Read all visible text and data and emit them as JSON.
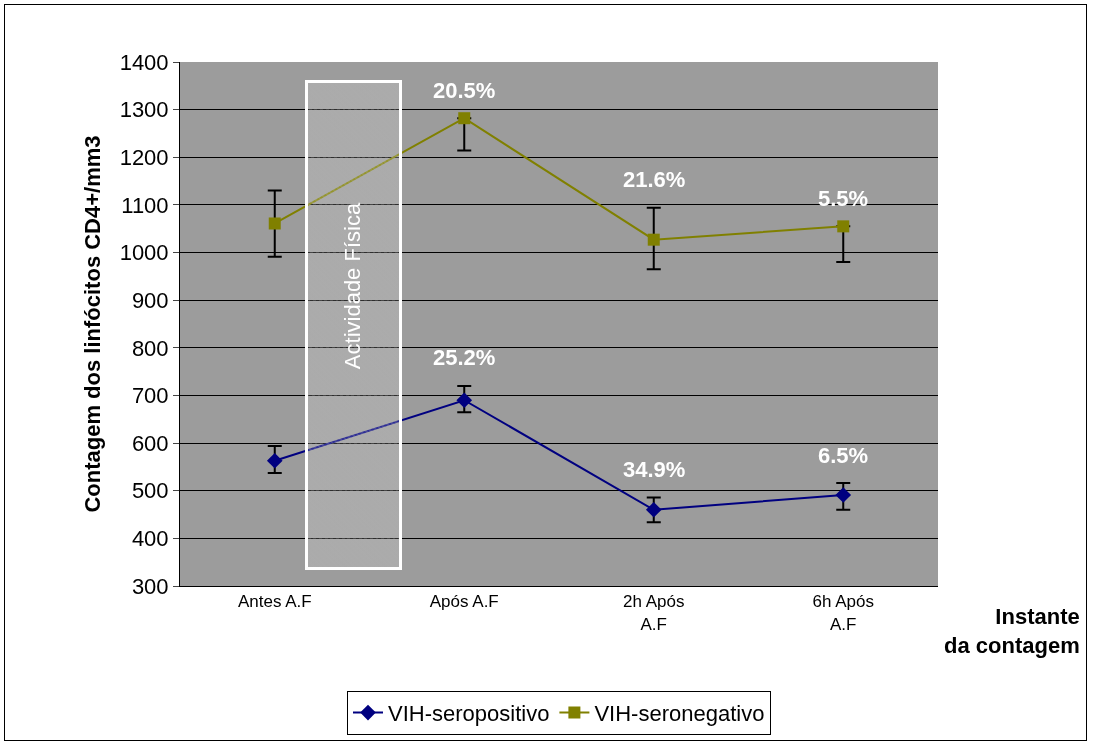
{
  "chart_data": {
    "type": "line",
    "ylabel": "Contagem dos linfócitos CD4+/mm3",
    "xlabel": "Instante da contagem",
    "categories": [
      "Antes A.F",
      "Após A.F",
      "2h Após A.F",
      "6h Após A.F"
    ],
    "series": [
      {
        "name": "VIH-seropositivo",
        "color": "#000080",
        "marker": "diamond",
        "values": [
          563,
          690,
          460,
          491
        ],
        "errors": [
          [
            537,
            594
          ],
          [
            665,
            720
          ],
          [
            434,
            486
          ],
          [
            460,
            516
          ]
        ]
      },
      {
        "name": "VIH-seronegativo",
        "color": "#808000",
        "marker": "square",
        "values": [
          1061,
          1282,
          1027,
          1055
        ],
        "errors": [
          [
            991,
            1130
          ],
          [
            1214,
            1282
          ],
          [
            965,
            1094
          ],
          [
            980,
            1055
          ]
        ]
      }
    ],
    "ylim": [
      300,
      1400
    ],
    "yticks": [
      300,
      400,
      500,
      600,
      700,
      800,
      900,
      1000,
      1100,
      1200,
      1300,
      1400
    ],
    "grid": "y",
    "legend": "bottom",
    "line_style": "solid",
    "annotations": [
      "Actividade Física",
      {
        "text": "20.5%",
        "x": "Após A.F",
        "y": 1282
      },
      {
        "text": "21.6%",
        "x": "2h Após A.F",
        "y": 1094
      },
      {
        "text": "5.5%",
        "x": "6h Após A.F",
        "y": 1055
      },
      {
        "text": "25.2%",
        "x": "Após A.F",
        "y": 720
      },
      {
        "text": "34.9%",
        "x": "2h Após A.F",
        "y": 486
      },
      {
        "text": "6.5%",
        "x": "6h Após A.F",
        "y": 516
      }
    ]
  }
}
